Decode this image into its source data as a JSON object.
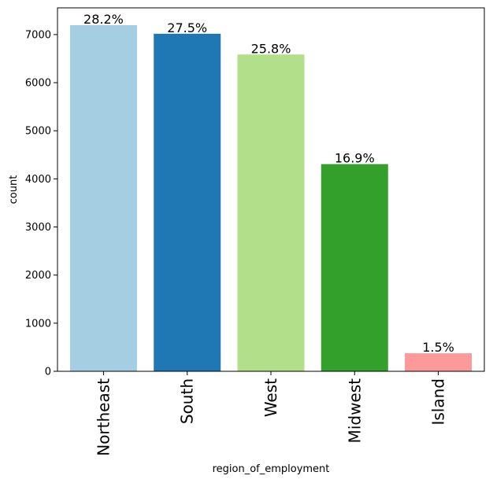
{
  "chart_data": {
    "type": "bar",
    "title": "",
    "xlabel": "region_of_employment",
    "ylabel": "count",
    "categories": [
      "Northeast",
      "South",
      "West",
      "Midwest",
      "Island"
    ],
    "values": [
      7195,
      7017,
      6586,
      4307,
      375
    ],
    "bar_labels": [
      "28.2%",
      "27.5%",
      "25.8%",
      "16.9%",
      "1.5%"
    ],
    "colors": [
      "#a6cee3",
      "#1f78b4",
      "#b2df8a",
      "#33a02c",
      "#fb9a99"
    ],
    "y_ticks": [
      0,
      1000,
      2000,
      3000,
      4000,
      5000,
      6000,
      7000
    ],
    "ylim": [
      0,
      7555
    ],
    "grid": false,
    "legend": "none"
  }
}
